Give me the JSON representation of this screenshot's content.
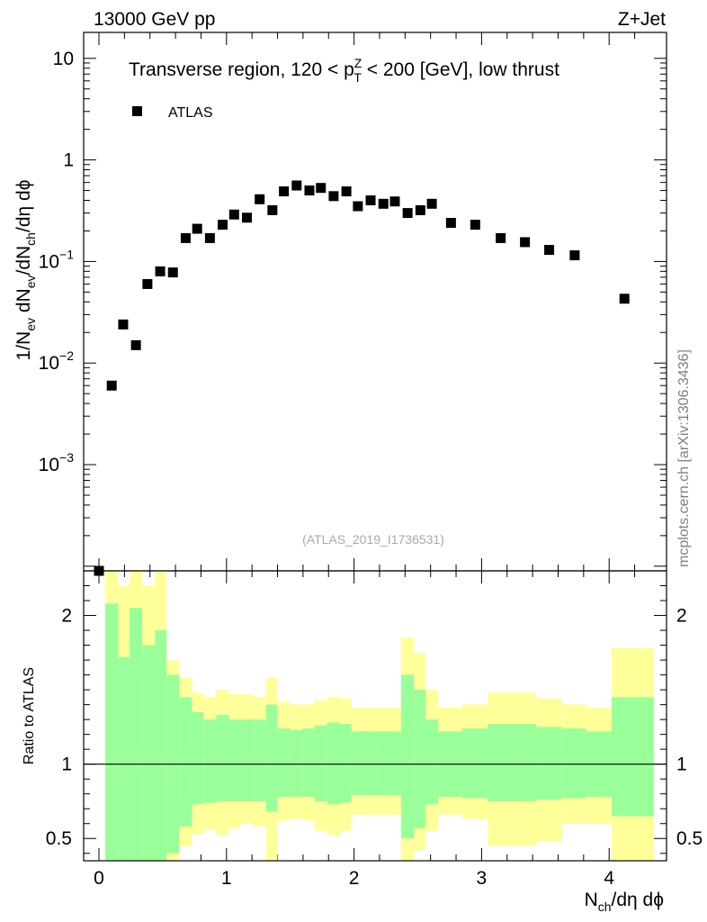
{
  "header": {
    "left": "13000 GeV pp",
    "right": "Z+Jet"
  },
  "side_label": "mcplots.cern.ch [arXiv:1306.3436]",
  "colors": {
    "band_inner": "#99ff99",
    "band_outer": "#ffff99",
    "marker": "#000000"
  },
  "chart_data": [
    {
      "type": "scatter",
      "title_parts": {
        "pre": "Transverse region, 120 < p",
        "sup": "Z",
        "sub": "T",
        "post": " < 200 [GeV], low thrust"
      },
      "legend": "ATLAS",
      "watermark": "(ATLAS_2019_I1736531)",
      "ylabel_parts": [
        "1/N",
        "ev",
        " dN",
        "ev",
        "/dN",
        "ch",
        "/dη dϕ"
      ],
      "yscale": "log",
      "ylim": [
        9e-05,
        18
      ],
      "xlim": [
        -0.12,
        4.45
      ],
      "yticks": [
        {
          "value": 10,
          "base": "10",
          "exp": ""
        },
        {
          "value": 1,
          "base": "1",
          "exp": ""
        },
        {
          "value": 0.1,
          "base": "10",
          "exp": "−1"
        },
        {
          "value": 0.01,
          "base": "10",
          "exp": "−2"
        },
        {
          "value": 0.001,
          "base": "10",
          "exp": "−3"
        }
      ],
      "series": [
        {
          "name": "ATLAS",
          "x": [
            0.0,
            0.1,
            0.19,
            0.29,
            0.38,
            0.48,
            0.58,
            0.68,
            0.77,
            0.87,
            0.97,
            1.06,
            1.16,
            1.26,
            1.36,
            1.45,
            1.55,
            1.65,
            1.74,
            1.84,
            1.94,
            2.03,
            2.13,
            2.23,
            2.32,
            2.42,
            2.52,
            2.61,
            2.76,
            2.95,
            3.15,
            3.34,
            3.53,
            3.73,
            4.12
          ],
          "y": [
            8e-05,
            0.006,
            0.024,
            0.015,
            0.06,
            0.08,
            0.078,
            0.17,
            0.21,
            0.17,
            0.23,
            0.29,
            0.27,
            0.41,
            0.32,
            0.49,
            0.56,
            0.5,
            0.53,
            0.44,
            0.49,
            0.35,
            0.4,
            0.37,
            0.39,
            0.3,
            0.32,
            0.37,
            0.24,
            0.23,
            0.17,
            0.155,
            0.13,
            0.115,
            0.043
          ]
        }
      ]
    },
    {
      "type": "area",
      "ylabel": "Ratio to ATLAS",
      "xlabel_parts": [
        "N",
        "ch",
        "/dη dϕ"
      ],
      "ylim": [
        0.35,
        2.3
      ],
      "xlim": [
        -0.12,
        4.45
      ],
      "yticks": [
        0.5,
        1,
        2
      ],
      "ytick_labels": [
        "0.5",
        "1",
        "2"
      ],
      "xticks": [
        0,
        1,
        2,
        3,
        4
      ],
      "xtick_labels": [
        "0",
        "1",
        "2",
        "3",
        "4"
      ],
      "reference_line": 1,
      "bands": [
        {
          "x0": 0.05,
          "x1": 0.15,
          "inner": [
            0.15,
            2.08
          ],
          "outer": [
            0.0,
            2.35
          ]
        },
        {
          "x0": 0.15,
          "x1": 0.24,
          "inner": [
            0.15,
            1.72
          ],
          "outer": [
            0.0,
            2.2
          ]
        },
        {
          "x0": 0.24,
          "x1": 0.34,
          "inner": [
            0.35,
            2.05
          ],
          "outer": [
            0.0,
            2.35
          ]
        },
        {
          "x0": 0.34,
          "x1": 0.44,
          "inner": [
            0.3,
            1.8
          ],
          "outer": [
            0.0,
            2.2
          ]
        },
        {
          "x0": 0.44,
          "x1": 0.53,
          "inner": [
            0.3,
            1.9
          ],
          "outer": [
            0.0,
            2.35
          ]
        },
        {
          "x0": 0.53,
          "x1": 0.63,
          "inner": [
            0.4,
            1.6
          ],
          "outer": [
            0.0,
            1.7
          ]
        },
        {
          "x0": 0.63,
          "x1": 0.73,
          "inner": [
            0.58,
            1.45
          ],
          "outer": [
            0.45,
            1.58
          ]
        },
        {
          "x0": 0.73,
          "x1": 0.82,
          "inner": [
            0.73,
            1.35
          ],
          "outer": [
            0.53,
            1.48
          ]
        },
        {
          "x0": 0.82,
          "x1": 0.92,
          "inner": [
            0.74,
            1.3
          ],
          "outer": [
            0.56,
            1.45
          ]
        },
        {
          "x0": 0.92,
          "x1": 1.02,
          "inner": [
            0.75,
            1.33
          ],
          "outer": [
            0.52,
            1.5
          ]
        },
        {
          "x0": 1.02,
          "x1": 1.11,
          "inner": [
            0.75,
            1.3
          ],
          "outer": [
            0.57,
            1.47
          ]
        },
        {
          "x0": 1.11,
          "x1": 1.21,
          "inner": [
            0.75,
            1.3
          ],
          "outer": [
            0.6,
            1.47
          ]
        },
        {
          "x0": 1.21,
          "x1": 1.31,
          "inner": [
            0.75,
            1.3
          ],
          "outer": [
            0.58,
            1.45
          ]
        },
        {
          "x0": 1.31,
          "x1": 1.4,
          "inner": [
            0.68,
            1.4
          ],
          "outer": [
            0.35,
            1.58
          ]
        },
        {
          "x0": 1.4,
          "x1": 1.5,
          "inner": [
            0.78,
            1.24
          ],
          "outer": [
            0.62,
            1.42
          ]
        },
        {
          "x0": 1.5,
          "x1": 1.6,
          "inner": [
            0.78,
            1.23
          ],
          "outer": [
            0.63,
            1.4
          ]
        },
        {
          "x0": 1.6,
          "x1": 1.69,
          "inner": [
            0.78,
            1.24
          ],
          "outer": [
            0.62,
            1.4
          ]
        },
        {
          "x0": 1.69,
          "x1": 1.79,
          "inner": [
            0.75,
            1.26
          ],
          "outer": [
            0.55,
            1.43
          ]
        },
        {
          "x0": 1.79,
          "x1": 1.89,
          "inner": [
            0.73,
            1.28
          ],
          "outer": [
            0.52,
            1.45
          ]
        },
        {
          "x0": 1.89,
          "x1": 1.98,
          "inner": [
            0.74,
            1.27
          ],
          "outer": [
            0.55,
            1.44
          ]
        },
        {
          "x0": 1.98,
          "x1": 2.08,
          "inner": [
            0.79,
            1.22
          ],
          "outer": [
            0.66,
            1.38
          ]
        },
        {
          "x0": 2.08,
          "x1": 2.18,
          "inner": [
            0.79,
            1.22
          ],
          "outer": [
            0.66,
            1.38
          ]
        },
        {
          "x0": 2.18,
          "x1": 2.27,
          "inner": [
            0.79,
            1.22
          ],
          "outer": [
            0.66,
            1.38
          ]
        },
        {
          "x0": 2.27,
          "x1": 2.37,
          "inner": [
            0.79,
            1.22
          ],
          "outer": [
            0.66,
            1.38
          ]
        },
        {
          "x0": 2.37,
          "x1": 2.47,
          "inner": [
            0.5,
            1.6
          ],
          "outer": [
            0.3,
            1.85
          ]
        },
        {
          "x0": 2.47,
          "x1": 2.56,
          "inner": [
            0.57,
            1.5
          ],
          "outer": [
            0.42,
            1.75
          ]
        },
        {
          "x0": 2.56,
          "x1": 2.66,
          "inner": [
            0.73,
            1.3
          ],
          "outer": [
            0.55,
            1.5
          ]
        },
        {
          "x0": 2.66,
          "x1": 2.85,
          "inner": [
            0.78,
            1.22
          ],
          "outer": [
            0.66,
            1.38
          ]
        },
        {
          "x0": 2.85,
          "x1": 3.05,
          "inner": [
            0.77,
            1.24
          ],
          "outer": [
            0.63,
            1.4
          ]
        },
        {
          "x0": 3.05,
          "x1": 3.24,
          "inner": [
            0.75,
            1.27
          ],
          "outer": [
            0.45,
            1.48
          ]
        },
        {
          "x0": 3.24,
          "x1": 3.43,
          "inner": [
            0.75,
            1.27
          ],
          "outer": [
            0.45,
            1.48
          ]
        },
        {
          "x0": 3.43,
          "x1": 3.63,
          "inner": [
            0.76,
            1.25
          ],
          "outer": [
            0.48,
            1.44
          ]
        },
        {
          "x0": 3.63,
          "x1": 3.82,
          "inner": [
            0.77,
            1.24
          ],
          "outer": [
            0.6,
            1.4
          ]
        },
        {
          "x0": 3.82,
          "x1": 4.02,
          "inner": [
            0.78,
            1.22
          ],
          "outer": [
            0.6,
            1.38
          ]
        },
        {
          "x0": 4.02,
          "x1": 4.35,
          "inner": [
            0.65,
            1.45
          ],
          "outer": [
            0.0,
            1.78
          ]
        }
      ]
    }
  ]
}
